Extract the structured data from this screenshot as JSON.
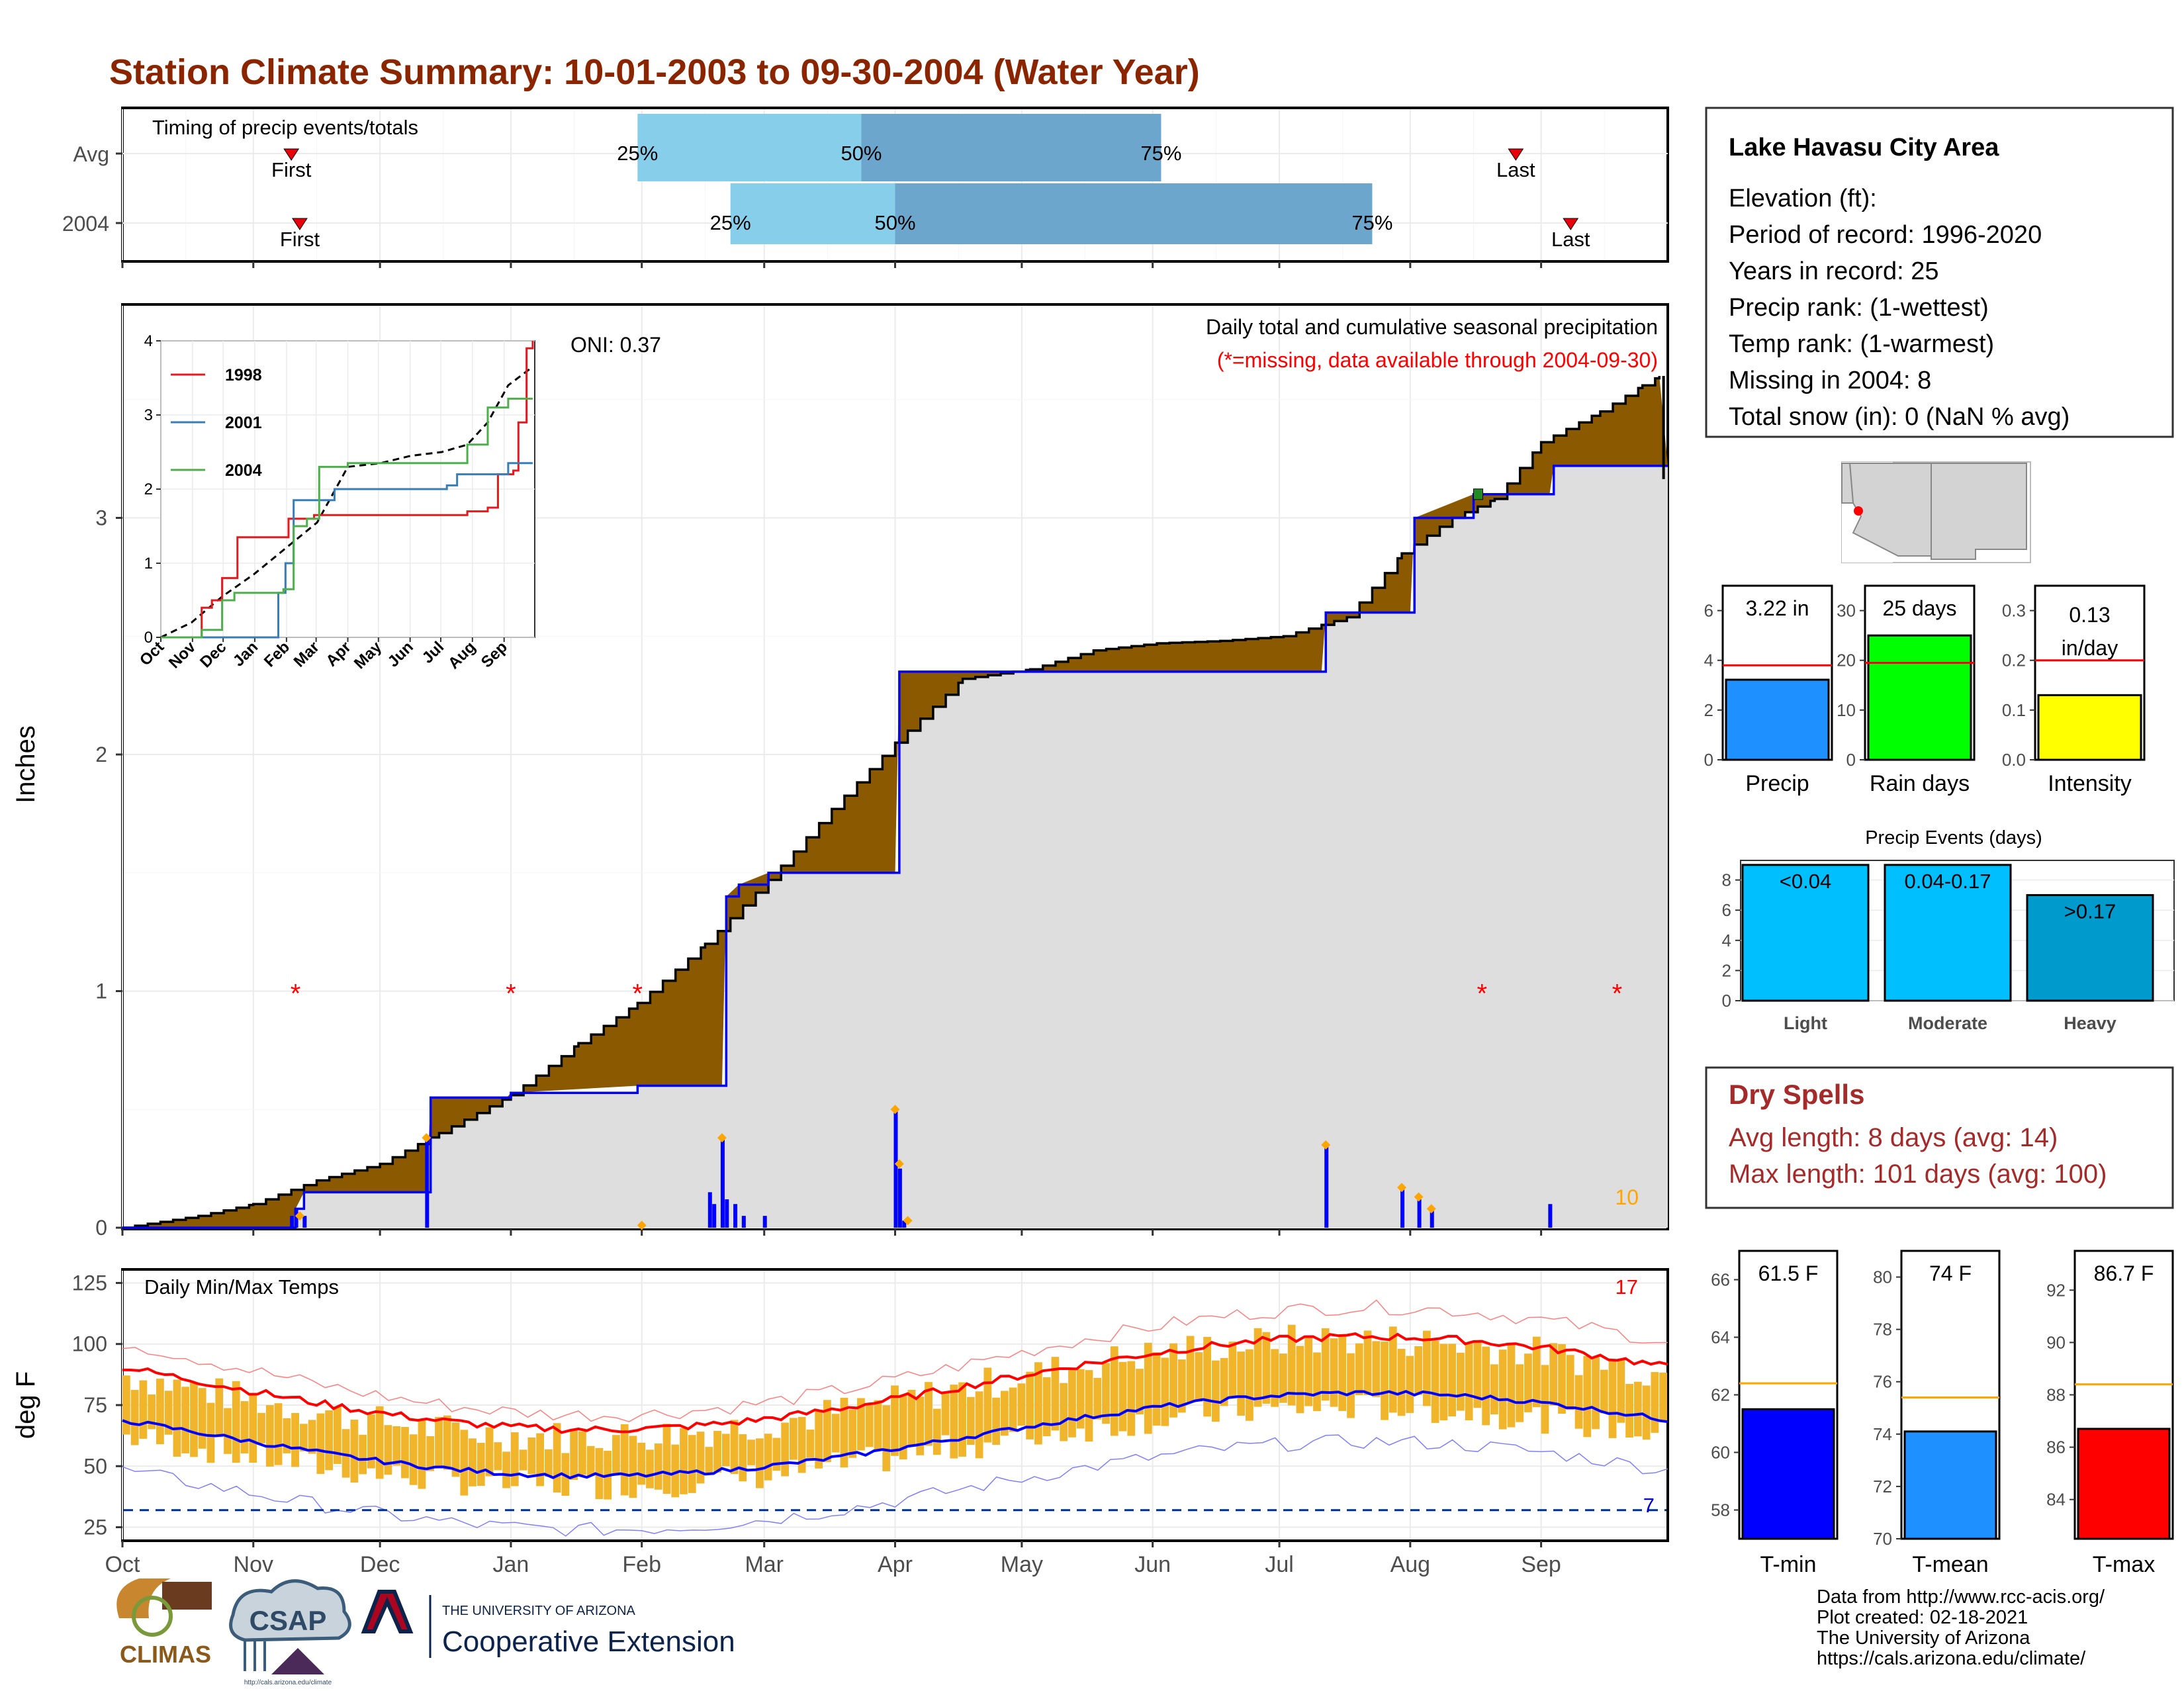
{
  "title": "Station Climate Summary: 10-01-2003 to 09-30-2004 (Water Year)",
  "months": [
    "Oct",
    "Nov",
    "Dec",
    "Jan",
    "Feb",
    "Mar",
    "Apr",
    "May",
    "Jun",
    "Jul",
    "Aug",
    "Sep"
  ],
  "timing": {
    "label": "Timing of precip events/totals",
    "rows": [
      {
        "name": "Avg",
        "first_day": 40,
        "q25_day": 122,
        "q50_day": 175,
        "q75_day": 246,
        "last_day": 330,
        "first_label": "First",
        "last_label": "Last",
        "q25_label": "25%",
        "q50_label": "50%",
        "q75_label": "75%"
      },
      {
        "name": "2004",
        "first_day": 42,
        "q25_day": 144,
        "q50_day": 183,
        "q75_day": 296,
        "last_day": 343,
        "first_label": "First",
        "last_label": "Last",
        "q25_label": "25%",
        "q50_label": "50%",
        "q75_label": "75%"
      }
    ],
    "colors": {
      "early": "#87CEEB",
      "late": "#6CA6CD",
      "marker": "#E8000B"
    }
  },
  "precip": {
    "ylabel": "Inches",
    "yticks": [
      "0",
      "1",
      "2",
      "3"
    ],
    "heading": "Daily total and cumulative seasonal precipitation",
    "subheading": "(*=missing, data available through 2004-09-30)",
    "oni": "ONI: 0.37",
    "corner_value": "10",
    "avg_cumulative": [
      [
        0,
        0
      ],
      [
        18,
        0.05
      ],
      [
        31,
        0.1
      ],
      [
        46,
        0.2
      ],
      [
        61,
        0.27
      ],
      [
        75,
        0.4
      ],
      [
        92,
        0.56
      ],
      [
        108,
        0.78
      ],
      [
        122,
        0.95
      ],
      [
        138,
        1.2
      ],
      [
        153,
        1.47
      ],
      [
        168,
        1.77
      ],
      [
        183,
        2.05
      ],
      [
        199,
        2.32
      ],
      [
        215,
        2.36
      ],
      [
        230,
        2.44
      ],
      [
        245,
        2.47
      ],
      [
        260,
        2.48
      ],
      [
        275,
        2.5
      ],
      [
        290,
        2.58
      ],
      [
        303,
        2.85
      ],
      [
        315,
        3.0
      ],
      [
        325,
        3.08
      ],
      [
        336,
        3.32
      ],
      [
        350,
        3.45
      ],
      [
        360,
        3.56
      ],
      [
        364,
        3.6
      ]
    ],
    "obs_cumulative": [
      [
        0,
        0
      ],
      [
        40,
        0
      ],
      [
        41,
        0.08
      ],
      [
        43,
        0.15
      ],
      [
        56,
        0.15
      ],
      [
        72,
        0.15
      ],
      [
        73,
        0.55
      ],
      [
        91,
        0.55
      ],
      [
        92,
        0.57
      ],
      [
        122,
        0.6
      ],
      [
        142,
        0.6
      ],
      [
        143,
        1.4
      ],
      [
        146,
        1.45
      ],
      [
        153,
        1.5
      ],
      [
        183,
        1.5
      ],
      [
        184,
        2.35
      ],
      [
        230,
        2.35
      ],
      [
        284,
        2.35
      ],
      [
        285,
        2.6
      ],
      [
        305,
        2.6
      ],
      [
        306,
        3.0
      ],
      [
        320,
        3.1
      ],
      [
        338,
        3.1
      ],
      [
        339,
        3.22
      ],
      [
        366,
        3.22
      ]
    ],
    "daily_bars": [
      [
        40,
        0.05
      ],
      [
        41,
        0.08
      ],
      [
        43,
        0.05
      ],
      [
        72,
        0.38
      ],
      [
        139,
        0.15
      ],
      [
        140,
        0.1
      ],
      [
        142,
        0.38
      ],
      [
        143,
        0.12
      ],
      [
        145,
        0.1
      ],
      [
        147,
        0.05
      ],
      [
        152,
        0.05
      ],
      [
        183,
        0.5
      ],
      [
        184,
        0.25
      ],
      [
        185,
        0.03
      ],
      [
        285,
        0.35
      ],
      [
        303,
        0.17
      ],
      [
        307,
        0.12
      ],
      [
        310,
        0.08
      ],
      [
        338,
        0.1
      ]
    ],
    "orange_points": [
      [
        42,
        0.05
      ],
      [
        72,
        0.38
      ],
      [
        123,
        0.01
      ],
      [
        142,
        0.38
      ],
      [
        183,
        0.5
      ],
      [
        184,
        0.27
      ],
      [
        186,
        0.03
      ],
      [
        285,
        0.35
      ],
      [
        303,
        0.17
      ],
      [
        307,
        0.13
      ],
      [
        310,
        0.08
      ]
    ],
    "missing_days": [
      41,
      92,
      122,
      322,
      354
    ],
    "inset": {
      "yticks": [
        "0",
        "1",
        "2",
        "3",
        "4"
      ],
      "xticks": [
        "Oct",
        "Nov",
        "Dec",
        "Jan",
        "Feb",
        "Mar",
        "Apr",
        "May",
        "Jun",
        "Jul",
        "Aug",
        "Sep"
      ],
      "series": [
        {
          "name": "1998",
          "color": "#E41A1C",
          "points": [
            [
              0,
              0
            ],
            [
              40,
              0.4
            ],
            [
              50,
              0.5
            ],
            [
              60,
              0.8
            ],
            [
              75,
              1.35
            ],
            [
              120,
              1.35
            ],
            [
              125,
              1.6
            ],
            [
              150,
              1.65
            ],
            [
              200,
              1.65
            ],
            [
              250,
              1.65
            ],
            [
              300,
              1.7
            ],
            [
              320,
              1.75
            ],
            [
              330,
              2.2
            ],
            [
              345,
              2.25
            ],
            [
              350,
              2.9
            ],
            [
              358,
              3.9
            ],
            [
              364,
              4.0
            ]
          ]
        },
        {
          "name": "2001",
          "color": "#377EB8",
          "points": [
            [
              0,
              0
            ],
            [
              100,
              0
            ],
            [
              110,
              0
            ],
            [
              115,
              0.6
            ],
            [
              122,
              1.0
            ],
            [
              130,
              1.85
            ],
            [
              150,
              1.85
            ],
            [
              170,
              2.0
            ],
            [
              200,
              2.0
            ],
            [
              250,
              2.0
            ],
            [
              280,
              2.05
            ],
            [
              290,
              2.2
            ],
            [
              330,
              2.2
            ],
            [
              340,
              2.35
            ],
            [
              364,
              2.35
            ]
          ]
        },
        {
          "name": "2004",
          "color": "#4DAF4A",
          "points": [
            [
              0,
              0
            ],
            [
              40,
              0.1
            ],
            [
              60,
              0.5
            ],
            [
              72,
              0.6
            ],
            [
              91,
              0.6
            ],
            [
              100,
              0.6
            ],
            [
              120,
              0.65
            ],
            [
              130,
              1.5
            ],
            [
              143,
              1.6
            ],
            [
              155,
              2.3
            ],
            [
              183,
              2.35
            ],
            [
              230,
              2.35
            ],
            [
              284,
              2.35
            ],
            [
              300,
              2.6
            ],
            [
              320,
              3.1
            ],
            [
              340,
              3.22
            ],
            [
              364,
              3.22
            ]
          ]
        }
      ],
      "avg_points": [
        [
          0,
          0
        ],
        [
          30,
          0.2
        ],
        [
          60,
          0.55
        ],
        [
          91,
          0.85
        ],
        [
          122,
          1.2
        ],
        [
          153,
          1.55
        ],
        [
          183,
          2.3
        ],
        [
          215,
          2.35
        ],
        [
          245,
          2.45
        ],
        [
          275,
          2.5
        ],
        [
          300,
          2.6
        ],
        [
          320,
          2.9
        ],
        [
          340,
          3.4
        ],
        [
          364,
          3.65
        ]
      ]
    }
  },
  "temps": {
    "label": "Daily Min/Max Temps",
    "ylabel": "deg F",
    "yticks": [
      "25",
      "50",
      "75",
      "100",
      "125"
    ],
    "count_max": "17",
    "count_min": "7",
    "dashed_freeze": 32
  },
  "station": {
    "name": "Lake Havasu City Area",
    "lines": [
      "Elevation (ft):",
      "Period of record: 1996-2020",
      "Years in record: 25",
      "Precip rank:  (1-wettest)",
      "Temp rank:  (1-warmest)",
      "Missing in 2004: 8",
      "Total snow (in): 0 (NaN % avg)"
    ]
  },
  "summary_bars": [
    {
      "label": "Precip",
      "value": 3.22,
      "value_text": "3.22 in",
      "avg": 3.8,
      "ymax": 7,
      "ticks": [
        "0",
        "2",
        "4",
        "6"
      ],
      "color": "#1E90FF"
    },
    {
      "label": "Rain days",
      "value": 25,
      "value_text": "25 days",
      "avg": 19.5,
      "ymax": 35,
      "ticks": [
        "0",
        "10",
        "20",
        "30"
      ],
      "color": "#00FF00"
    },
    {
      "label": "Intensity",
      "value": 0.13,
      "value_text": "0.13 in/day",
      "avg": 0.2,
      "ymax": 0.35,
      "ticks": [
        "0.0",
        "0.1",
        "0.2",
        "0.3"
      ],
      "color": "#FFFF00"
    }
  ],
  "events": {
    "title": "Precip Events (days)",
    "ticks": [
      "0",
      "2",
      "4",
      "6",
      "8"
    ],
    "bars": [
      {
        "category": "Light",
        "label": "<0.04",
        "value": 9,
        "color": "#00BFFF"
      },
      {
        "category": "Moderate",
        "label": "0.04-0.17",
        "value": 9,
        "color": "#00BFFF"
      },
      {
        "category": "Heavy",
        "label": ">0.17",
        "value": 7,
        "color": "#009ACD"
      }
    ]
  },
  "dry_spells": {
    "title": "Dry Spells",
    "avg": "Avg length: 8 days (avg: 14)",
    "max": "Max length: 101 days (avg: 100)"
  },
  "temp_bars": [
    {
      "label": "T-min",
      "value": 61.5,
      "value_text": "61.5 F",
      "avg": 62.4,
      "ymin": 57,
      "ymax": 67,
      "ticks": [
        "58",
        "60",
        "62",
        "64",
        "66"
      ],
      "color": "#0000FF"
    },
    {
      "label": "T-mean",
      "value": 74.1,
      "value_text": "74 F",
      "avg": 75.4,
      "ymin": 70,
      "ymax": 81,
      "ticks": [
        "70",
        "72",
        "74",
        "76",
        "78",
        "80"
      ],
      "color": "#1E90FF"
    },
    {
      "label": "T-max",
      "value": 86.7,
      "value_text": "86.7 F",
      "avg": 88.4,
      "ymin": 82.5,
      "ymax": 93.5,
      "ticks": [
        "84",
        "86",
        "88",
        "90",
        "92"
      ],
      "color": "#FF0000"
    }
  ],
  "footer": {
    "lines": [
      "Data from http://www.rcc-acis.org/",
      "Plot created: 02-18-2021",
      "The University of Arizona",
      "https://cals.arizona.edu/climate/"
    ],
    "logo_climas": "CLIMAS",
    "logo_csap": "CSAP",
    "logo_csap_url": "http://cals.arizona.edu/climate",
    "uofa_small": "THE UNIVERSITY OF ARIZONA",
    "uofa_big": "Cooperative Extension"
  }
}
